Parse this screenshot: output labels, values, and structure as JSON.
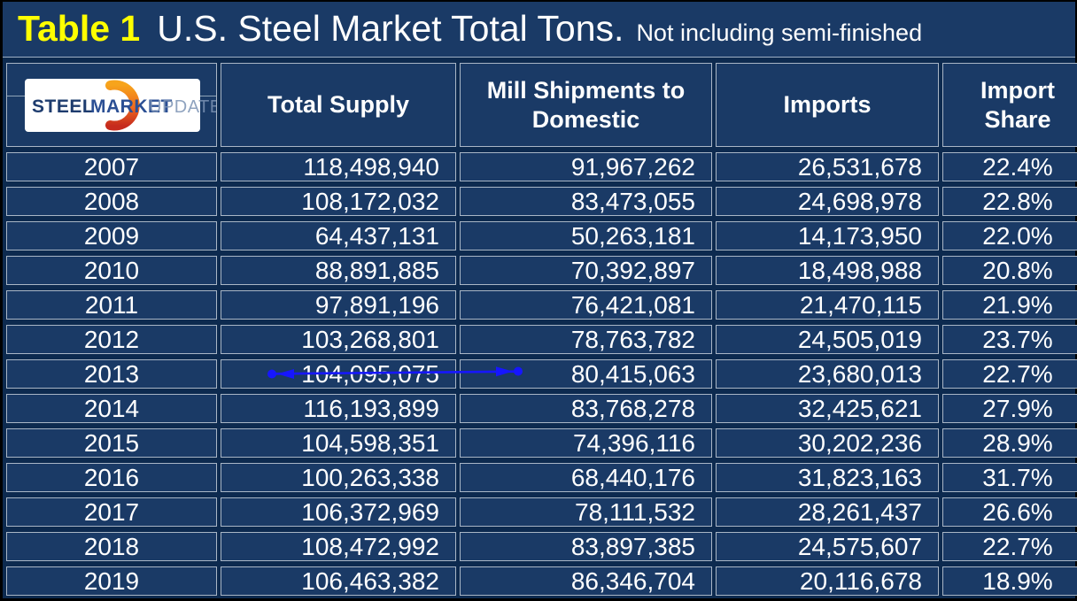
{
  "title": {
    "label": "Table 1",
    "main": "U.S. Steel Market Total Tons.",
    "note": "Not including semi-finished"
  },
  "logo": {
    "word1": "STEEL",
    "word2": "MARKET",
    "word3": "UPDATE"
  },
  "table": {
    "columns": [
      "Total Supply",
      "Mill Shipments to Domestic",
      "Imports",
      "Import Share"
    ],
    "rows": [
      {
        "year": "2007",
        "total_supply": "118,498,940",
        "mill_shipments": "91,967,262",
        "imports": "26,531,678",
        "import_share": "22.4%"
      },
      {
        "year": "2008",
        "total_supply": "108,172,032",
        "mill_shipments": "83,473,055",
        "imports": "24,698,978",
        "import_share": "22.8%"
      },
      {
        "year": "2009",
        "total_supply": "64,437,131",
        "mill_shipments": "50,263,181",
        "imports": "14,173,950",
        "import_share": "22.0%"
      },
      {
        "year": "2010",
        "total_supply": "88,891,885",
        "mill_shipments": "70,392,897",
        "imports": "18,498,988",
        "import_share": "20.8%"
      },
      {
        "year": "2011",
        "total_supply": "97,891,196",
        "mill_shipments": "76,421,081",
        "imports": "21,470,115",
        "import_share": "21.9%"
      },
      {
        "year": "2012",
        "total_supply": "103,268,801",
        "mill_shipments": "78,763,782",
        "imports": "24,505,019",
        "import_share": "23.7%"
      },
      {
        "year": "2013",
        "total_supply": "104,095,075",
        "mill_shipments": "80,415,063",
        "imports": "23,680,013",
        "import_share": "22.7%"
      },
      {
        "year": "2014",
        "total_supply": "116,193,899",
        "mill_shipments": "83,768,278",
        "imports": "32,425,621",
        "import_share": "27.9%"
      },
      {
        "year": "2015",
        "total_supply": "104,598,351",
        "mill_shipments": "74,396,116",
        "imports": "30,202,236",
        "import_share": "28.9%"
      },
      {
        "year": "2016",
        "total_supply": "100,263,338",
        "mill_shipments": "68,440,176",
        "imports": "31,823,163",
        "import_share": "31.7%"
      },
      {
        "year": "2017",
        "total_supply": "106,372,969",
        "mill_shipments": "78,111,532",
        "imports": "28,261,437",
        "import_share": "26.6%"
      },
      {
        "year": "2018",
        "total_supply": "108,472,992",
        "mill_shipments": "83,897,385",
        "imports": "24,575,607",
        "import_share": "22.7%"
      },
      {
        "year": "2019",
        "total_supply": "106,463,382",
        "mill_shipments": "86,346,704",
        "imports": "20,116,678",
        "import_share": "18.9%"
      }
    ]
  },
  "annotation": {
    "shape": "double-headed-arrow",
    "color": "#1616FF",
    "row_year": "2013",
    "over_value": "104,095,075"
  },
  "chart_data": {
    "type": "table",
    "title": "Table 1  U.S. Steel Market Total Tons. Not including semi-finished",
    "categories": [
      "2007",
      "2008",
      "2009",
      "2010",
      "2011",
      "2012",
      "2013",
      "2014",
      "2015",
      "2016",
      "2017",
      "2018",
      "2019"
    ],
    "series": [
      {
        "name": "Total Supply",
        "values": [
          118498940,
          108172032,
          64437131,
          88891885,
          97891196,
          103268801,
          104095075,
          116193899,
          104598351,
          100263338,
          106372969,
          108472992,
          106463382
        ]
      },
      {
        "name": "Mill Shipments to Domestic",
        "values": [
          91967262,
          83473055,
          50263181,
          70392897,
          76421081,
          78763782,
          80415063,
          83768278,
          74396116,
          68440176,
          78111532,
          83897385,
          86346704
        ]
      },
      {
        "name": "Imports",
        "values": [
          26531678,
          24698978,
          14173950,
          18498988,
          21470115,
          24505019,
          23680013,
          32425621,
          30202236,
          31823163,
          28261437,
          24575607,
          20116678
        ]
      },
      {
        "name": "Import Share (%)",
        "values": [
          22.4,
          22.8,
          22.0,
          20.8,
          21.9,
          23.7,
          22.7,
          27.9,
          28.9,
          31.7,
          26.6,
          22.7,
          18.9
        ]
      }
    ]
  },
  "colors": {
    "page_background": "#0D2A4F",
    "cell_background": "#1A3A66",
    "border": "#A9B6C6",
    "title_label": "#FFFF00",
    "text": "#FFFFFF",
    "arrow": "#1616FF",
    "logo_orange_top": "#F7A41C",
    "logo_orange_bottom": "#C62B1E",
    "logo_steel_blue": "#1E3C6E"
  }
}
